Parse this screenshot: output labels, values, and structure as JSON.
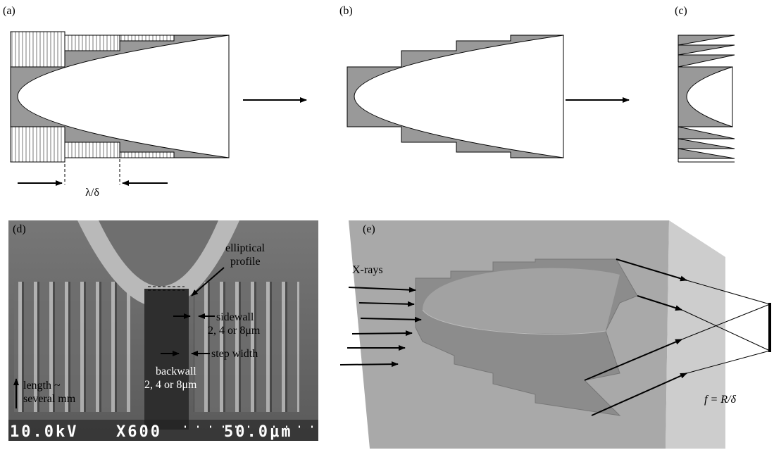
{
  "panel_a": {
    "label": "(a)",
    "dimension": "λ/δ"
  },
  "panel_b": {
    "label": "(b)"
  },
  "panel_c": {
    "label": "(c)"
  },
  "panel_d": {
    "label": "(d)",
    "annotations": {
      "elliptical_profile": [
        "elliptical",
        "profile"
      ],
      "sidewall": [
        "sidewall",
        "2, 4 or 8μm"
      ],
      "step_width": "step width",
      "backwall": [
        "backwall",
        "2, 4 or 8μm"
      ],
      "length": [
        "length ~",
        "several mm"
      ]
    },
    "sem_footer": {
      "voltage": "10.0kV",
      "magnification": "X600",
      "scale": "50.0μm"
    }
  },
  "panel_e": {
    "label": "(e)",
    "beam": "X-rays",
    "focal_length": "f = R/δ"
  }
}
